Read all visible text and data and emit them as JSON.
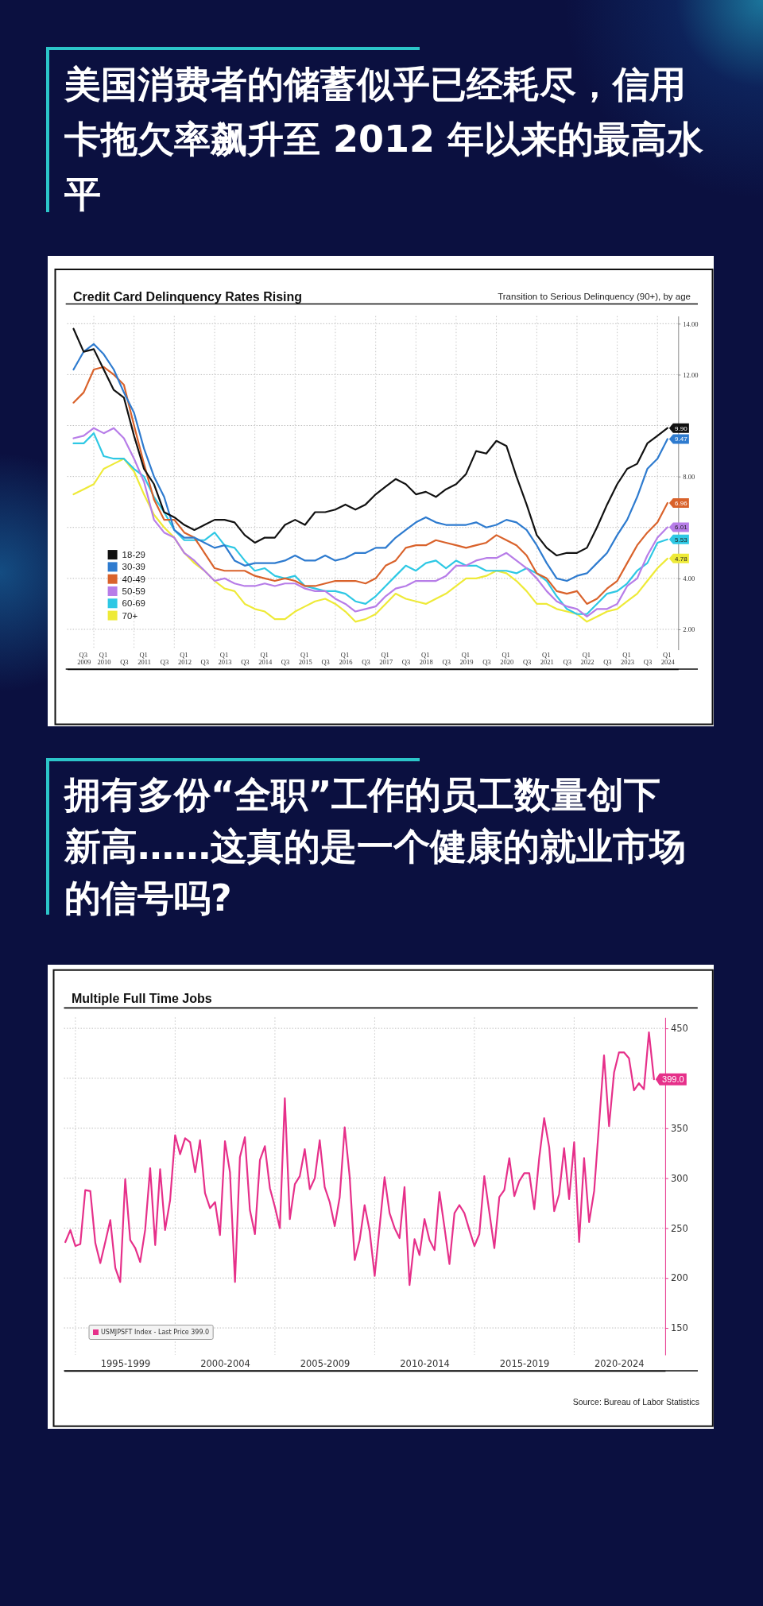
{
  "chart_data": [
    {
      "type": "line",
      "title": "美国消费者的储蓄似乎已经耗尽，信用卡拖欠率飙升至 2012 年以来的最高水平",
      "subtitle": "Credit Card Delinquency Rates Rising",
      "annotations": [
        "Transition to Serious Delinquency (90+), by age"
      ],
      "x": [
        "2009-07",
        "2009-10",
        "2010-01",
        "2010-04",
        "2010-07",
        "2010-10",
        "2011-01",
        "2011-04",
        "2011-07",
        "2011-10",
        "2012-01",
        "2012-04",
        "2012-07",
        "2012-10",
        "2013-01",
        "2013-04",
        "2013-07",
        "2013-10",
        "2014-01",
        "2014-04",
        "2014-07",
        "2014-10",
        "2015-01",
        "2015-04",
        "2015-07",
        "2015-10",
        "2016-01",
        "2016-04",
        "2016-07",
        "2016-10",
        "2017-01",
        "2017-04",
        "2017-07",
        "2017-10",
        "2018-01",
        "2018-04",
        "2018-07",
        "2018-10",
        "2019-01",
        "2019-04",
        "2019-07",
        "2019-10",
        "2020-01",
        "2020-04",
        "2020-07",
        "2020-10",
        "2021-01",
        "2021-04",
        "2021-07",
        "2021-10",
        "2022-01",
        "2022-04",
        "2022-07",
        "2022-10",
        "2023-01",
        "2023-04",
        "2023-07",
        "2023-10",
        "2024-01",
        "2024-04"
      ],
      "xlim": [
        "2009-05-05",
        "2024-07-07"
      ],
      "xticks": [
        {
          "value": "2009-10-01",
          "label": "Q3 2009"
        },
        {
          "value": "2010-04-01",
          "label": "Q1 2010"
        },
        {
          "value": "2010-10-01",
          "label": "Q3"
        },
        {
          "value": "2011-04-01",
          "label": "Q1 2011"
        },
        {
          "value": "2011-10-01",
          "label": "Q3"
        },
        {
          "value": "2012-04-01",
          "label": "Q1 2012"
        },
        {
          "value": "2012-10-01",
          "label": "Q3"
        },
        {
          "value": "2013-04-01",
          "label": "Q1 2013"
        },
        {
          "value": "2013-10-01",
          "label": "Q3"
        },
        {
          "value": "2014-04-01",
          "label": "Q1 2014"
        },
        {
          "value": "2014-10-01",
          "label": "Q3"
        },
        {
          "value": "2015-04-01",
          "label": "Q1 2015"
        },
        {
          "value": "2015-10-01",
          "label": "Q3"
        },
        {
          "value": "2016-04-01",
          "label": "Q1 2016"
        },
        {
          "value": "2016-10-01",
          "label": "Q3"
        },
        {
          "value": "2017-04-01",
          "label": "Q1 2017"
        },
        {
          "value": "2017-10-01",
          "label": "Q3"
        },
        {
          "value": "2018-04-01",
          "label": "Q1 2018"
        },
        {
          "value": "2018-10-01",
          "label": "Q3"
        },
        {
          "value": "2019-04-01",
          "label": "Q1 2019"
        },
        {
          "value": "2019-10-01",
          "label": "Q3"
        },
        {
          "value": "2020-04-01",
          "label": "Q1 2020"
        },
        {
          "value": "2020-10-01",
          "label": "Q3"
        },
        {
          "value": "2021-04-01",
          "label": "Q1 2021"
        },
        {
          "value": "2021-10-01",
          "label": "Q3"
        },
        {
          "value": "2022-04-01",
          "label": "Q1 2022"
        },
        {
          "value": "2022-10-01",
          "label": "Q3"
        },
        {
          "value": "2023-04-01",
          "label": "Q1 2023"
        },
        {
          "value": "2023-10-01",
          "label": "Q3"
        },
        {
          "value": "2024-04-01",
          "label": "Q1 2024"
        }
      ],
      "ylim": [
        1.2,
        14.3
      ],
      "yticks": [
        {
          "value": 2,
          "label": "2.00"
        },
        {
          "value": 4,
          "label": "4.00"
        },
        {
          "value": 6,
          "label": null
        },
        {
          "value": 8,
          "label": "8.00"
        },
        {
          "value": 10,
          "label": null
        },
        {
          "value": 12,
          "label": "12.00"
        },
        {
          "value": 14,
          "label": "14.00"
        }
      ],
      "grid": "y",
      "legend": "bottom left",
      "ref_lines": [
        {
          "axis": "x",
          "value": "2010-01-01",
          "color": "#c8c8c8",
          "line_style": "dotted"
        },
        {
          "axis": "x",
          "value": "2011-01-01",
          "color": "#c8c8c8",
          "line_style": "dotted"
        },
        {
          "axis": "x",
          "value": "2012-01-01",
          "color": "#c8c8c8",
          "line_style": "dotted"
        },
        {
          "axis": "x",
          "value": "2013-01-01",
          "color": "#c8c8c8",
          "line_style": "dotted"
        },
        {
          "axis": "x",
          "value": "2014-01-01",
          "color": "#c8c8c8",
          "line_style": "dotted"
        },
        {
          "axis": "x",
          "value": "2015-01-01",
          "color": "#c8c8c8",
          "line_style": "dotted"
        },
        {
          "axis": "x",
          "value": "2016-01-01",
          "color": "#c8c8c8",
          "line_style": "dotted"
        },
        {
          "axis": "x",
          "value": "2017-01-01",
          "color": "#c8c8c8",
          "line_style": "dotted"
        },
        {
          "axis": "x",
          "value": "2018-01-01",
          "color": "#c8c8c8",
          "line_style": "dotted"
        },
        {
          "axis": "x",
          "value": "2019-01-01",
          "color": "#c8c8c8",
          "line_style": "dotted"
        },
        {
          "axis": "x",
          "value": "2020-01-01",
          "color": "#c8c8c8",
          "line_style": "dotted"
        },
        {
          "axis": "x",
          "value": "2021-01-01",
          "color": "#c8c8c8",
          "line_style": "dotted"
        },
        {
          "axis": "x",
          "value": "2022-01-01",
          "color": "#c8c8c8",
          "line_style": "dotted"
        },
        {
          "axis": "x",
          "value": "2023-01-01",
          "color": "#c8c8c8",
          "line_style": "dotted"
        },
        {
          "axis": "x",
          "value": "2024-01-01",
          "color": "#c8c8c8",
          "line_style": "dotted"
        }
      ],
      "series": [
        {
          "name": "18-29",
          "color": "#111111",
          "values": [
            13.8,
            12.9,
            13.0,
            12.2,
            11.4,
            11.1,
            9.6,
            8.3,
            7.7,
            6.6,
            6.4,
            6.1,
            5.9,
            6.1,
            6.3,
            6.3,
            6.2,
            5.7,
            5.4,
            5.6,
            5.6,
            6.1,
            6.3,
            6.1,
            6.6,
            6.6,
            6.7,
            6.9,
            6.7,
            6.9,
            7.3,
            7.6,
            7.9,
            7.7,
            7.3,
            7.4,
            7.2,
            7.5,
            7.7,
            8.1,
            9.0,
            8.9,
            9.4,
            9.2,
            8.0,
            6.9,
            5.7,
            5.2,
            4.9,
            5.0,
            5.0,
            5.2,
            6.0,
            6.9,
            7.7,
            8.3,
            8.5,
            9.3,
            9.6,
            9.9
          ],
          "value_labels": [
            null,
            null,
            null,
            null,
            null,
            null,
            null,
            null,
            null,
            null,
            null,
            null,
            null,
            null,
            null,
            null,
            null,
            null,
            null,
            null,
            null,
            null,
            null,
            null,
            null,
            null,
            null,
            null,
            null,
            null,
            null,
            null,
            null,
            null,
            null,
            null,
            null,
            null,
            null,
            null,
            null,
            null,
            null,
            null,
            null,
            null,
            null,
            null,
            null,
            null,
            null,
            null,
            null,
            null,
            null,
            null,
            null,
            null,
            null,
            "9.90"
          ]
        },
        {
          "name": "30-39",
          "color": "#2e7bcf",
          "values": [
            12.2,
            12.9,
            13.2,
            12.8,
            12.2,
            11.3,
            10.5,
            9.1,
            8.0,
            7.2,
            5.9,
            5.6,
            5.6,
            5.4,
            5.2,
            5.3,
            4.7,
            4.5,
            4.6,
            4.6,
            4.6,
            4.7,
            4.9,
            4.7,
            4.7,
            4.9,
            4.7,
            4.8,
            5.0,
            5.0,
            5.2,
            5.2,
            5.6,
            5.9,
            6.2,
            6.4,
            6.2,
            6.1,
            6.1,
            6.1,
            6.2,
            6.0,
            6.1,
            6.3,
            6.2,
            5.9,
            5.3,
            4.6,
            4.0,
            3.9,
            4.1,
            4.2,
            4.6,
            5.0,
            5.7,
            6.3,
            7.2,
            8.3,
            8.7,
            9.47
          ],
          "value_labels": [
            null,
            null,
            null,
            null,
            null,
            null,
            null,
            null,
            null,
            null,
            null,
            null,
            null,
            null,
            null,
            null,
            null,
            null,
            null,
            null,
            null,
            null,
            null,
            null,
            null,
            null,
            null,
            null,
            null,
            null,
            null,
            null,
            null,
            null,
            null,
            null,
            null,
            null,
            null,
            null,
            null,
            null,
            null,
            null,
            null,
            null,
            null,
            null,
            null,
            null,
            null,
            null,
            null,
            null,
            null,
            null,
            null,
            null,
            null,
            "9.47"
          ]
        },
        {
          "name": "40-49",
          "color": "#d9622b",
          "values": [
            10.9,
            11.3,
            12.2,
            12.3,
            12.0,
            11.6,
            10.0,
            8.5,
            7.1,
            6.3,
            6.3,
            5.8,
            5.6,
            5.0,
            4.4,
            4.3,
            4.3,
            4.3,
            4.1,
            4.0,
            3.9,
            4.0,
            3.9,
            3.7,
            3.7,
            3.8,
            3.9,
            3.9,
            3.9,
            3.8,
            4.0,
            4.5,
            4.7,
            5.2,
            5.3,
            5.3,
            5.5,
            5.4,
            5.3,
            5.2,
            5.3,
            5.4,
            5.7,
            5.5,
            5.3,
            4.9,
            4.2,
            4.0,
            3.5,
            3.4,
            3.5,
            3.0,
            3.2,
            3.6,
            3.9,
            4.6,
            5.3,
            5.8,
            6.2,
            6.96
          ],
          "value_labels": [
            null,
            null,
            null,
            null,
            null,
            null,
            null,
            null,
            null,
            null,
            null,
            null,
            null,
            null,
            null,
            null,
            null,
            null,
            null,
            null,
            null,
            null,
            null,
            null,
            null,
            null,
            null,
            null,
            null,
            null,
            null,
            null,
            null,
            null,
            null,
            null,
            null,
            null,
            null,
            null,
            null,
            null,
            null,
            null,
            null,
            null,
            null,
            null,
            null,
            null,
            null,
            null,
            null,
            null,
            null,
            null,
            null,
            null,
            null,
            "6.96"
          ]
        },
        {
          "name": "50-59",
          "color": "#b77de8",
          "values": [
            9.5,
            9.6,
            9.9,
            9.7,
            9.9,
            9.5,
            8.7,
            7.8,
            6.3,
            5.8,
            5.6,
            5.0,
            4.7,
            4.3,
            3.9,
            4.0,
            3.8,
            3.7,
            3.7,
            3.8,
            3.7,
            3.8,
            3.8,
            3.6,
            3.5,
            3.5,
            3.2,
            3.0,
            2.7,
            2.8,
            2.9,
            3.3,
            3.6,
            3.7,
            3.9,
            3.9,
            3.9,
            4.1,
            4.5,
            4.5,
            4.7,
            4.8,
            4.8,
            5.0,
            4.7,
            4.4,
            4.0,
            3.5,
            3.1,
            2.9,
            2.8,
            2.5,
            2.8,
            2.8,
            3.0,
            3.7,
            4.0,
            4.9,
            5.6,
            6.01
          ],
          "value_labels": [
            null,
            null,
            null,
            null,
            null,
            null,
            null,
            null,
            null,
            null,
            null,
            null,
            null,
            null,
            null,
            null,
            null,
            null,
            null,
            null,
            null,
            null,
            null,
            null,
            null,
            null,
            null,
            null,
            null,
            null,
            null,
            null,
            null,
            null,
            null,
            null,
            null,
            null,
            null,
            null,
            null,
            null,
            null,
            null,
            null,
            null,
            null,
            null,
            null,
            null,
            null,
            null,
            null,
            null,
            null,
            null,
            null,
            null,
            null,
            "6.01"
          ]
        },
        {
          "name": "60-69",
          "color": "#2ec8e4",
          "values": [
            9.3,
            9.3,
            9.7,
            8.8,
            8.7,
            8.7,
            8.3,
            8.0,
            7.2,
            6.6,
            5.9,
            5.5,
            5.5,
            5.5,
            5.8,
            5.3,
            5.2,
            4.7,
            4.3,
            4.4,
            4.1,
            4.0,
            4.1,
            3.7,
            3.6,
            3.5,
            3.5,
            3.4,
            3.1,
            3.0,
            3.3,
            3.7,
            4.1,
            4.5,
            4.3,
            4.6,
            4.7,
            4.4,
            4.7,
            4.5,
            4.5,
            4.3,
            4.3,
            4.3,
            4.2,
            4.4,
            4.2,
            3.9,
            3.3,
            2.8,
            2.6,
            2.6,
            3.0,
            3.4,
            3.5,
            3.8,
            4.3,
            4.6,
            5.4,
            5.53
          ],
          "value_labels": [
            null,
            null,
            null,
            null,
            null,
            null,
            null,
            null,
            null,
            null,
            null,
            null,
            null,
            null,
            null,
            null,
            null,
            null,
            null,
            null,
            null,
            null,
            null,
            null,
            null,
            null,
            null,
            null,
            null,
            null,
            null,
            null,
            null,
            null,
            null,
            null,
            null,
            null,
            null,
            null,
            null,
            null,
            null,
            null,
            null,
            null,
            null,
            null,
            null,
            null,
            null,
            null,
            null,
            null,
            null,
            null,
            null,
            null,
            null,
            "5.53"
          ]
        },
        {
          "name": "70+",
          "color": "#eeea38",
          "values": [
            7.3,
            7.5,
            7.7,
            8.3,
            8.5,
            8.7,
            8.2,
            7.3,
            6.5,
            6.0,
            5.6,
            5.0,
            4.6,
            4.3,
            3.9,
            3.6,
            3.5,
            3.0,
            2.8,
            2.7,
            2.4,
            2.4,
            2.7,
            2.9,
            3.1,
            3.2,
            3.0,
            2.7,
            2.3,
            2.4,
            2.6,
            3.0,
            3.4,
            3.2,
            3.1,
            3.0,
            3.2,
            3.4,
            3.7,
            4.0,
            4.0,
            4.1,
            4.3,
            4.2,
            3.9,
            3.5,
            3.0,
            3.0,
            2.8,
            2.7,
            2.6,
            2.3,
            2.5,
            2.7,
            2.8,
            3.1,
            3.4,
            3.9,
            4.4,
            4.78
          ],
          "value_labels": [
            null,
            null,
            null,
            null,
            null,
            null,
            null,
            null,
            null,
            null,
            null,
            null,
            null,
            null,
            null,
            null,
            null,
            null,
            null,
            null,
            null,
            null,
            null,
            null,
            null,
            null,
            null,
            null,
            null,
            null,
            null,
            null,
            null,
            null,
            null,
            null,
            null,
            null,
            null,
            null,
            null,
            null,
            null,
            null,
            null,
            null,
            null,
            null,
            null,
            null,
            null,
            null,
            null,
            null,
            null,
            null,
            null,
            null,
            null,
            "4.78"
          ]
        }
      ]
    },
    {
      "type": "line",
      "title": "拥有多份“全职”工作的员工数量创下新高……这真的是一个健康的就业市场的信号吗?",
      "subtitle": "Multiple Full Time Jobs",
      "annotations": [
        "Source: Bureau of Labor Statistics"
      ],
      "x": [
        "1994-07",
        "1994-10",
        "1995-01",
        "1995-04",
        "1995-07",
        "1995-10",
        "1996-01",
        "1996-04",
        "1996-07",
        "1996-10",
        "1997-01",
        "1997-04",
        "1997-07",
        "1997-10",
        "1998-01",
        "1998-04",
        "1998-07",
        "1998-10",
        "1999-01",
        "1999-04",
        "1999-07",
        "1999-10",
        "2000-01",
        "2000-04",
        "2000-07",
        "2000-10",
        "2001-01",
        "2001-04",
        "2001-07",
        "2001-10",
        "2002-01",
        "2002-04",
        "2002-07",
        "2002-10",
        "2003-01",
        "2003-04",
        "2003-07",
        "2003-10",
        "2004-01",
        "2004-04",
        "2004-07",
        "2004-10",
        "2005-01",
        "2005-04",
        "2005-07",
        "2005-10",
        "2006-01",
        "2006-04",
        "2006-07",
        "2006-10",
        "2007-01",
        "2007-04",
        "2007-07",
        "2007-10",
        "2008-01",
        "2008-04",
        "2008-07",
        "2008-10",
        "2009-01",
        "2009-04",
        "2009-07",
        "2009-10",
        "2010-01",
        "2010-04",
        "2010-07",
        "2010-10",
        "2011-01",
        "2011-04",
        "2011-07",
        "2011-10",
        "2012-01",
        "2012-04",
        "2012-07",
        "2012-10",
        "2013-01",
        "2013-04",
        "2013-07",
        "2013-10",
        "2014-01",
        "2014-04",
        "2014-07",
        "2014-10",
        "2015-01",
        "2015-04",
        "2015-07",
        "2015-10",
        "2016-01",
        "2016-04",
        "2016-07",
        "2016-10",
        "2017-01",
        "2017-04",
        "2017-07",
        "2017-10",
        "2018-01",
        "2018-04",
        "2018-07",
        "2018-10",
        "2019-01",
        "2019-04",
        "2019-07",
        "2019-10",
        "2020-01",
        "2020-04",
        "2020-07",
        "2020-10",
        "2021-01",
        "2021-04",
        "2021-07",
        "2021-10",
        "2022-01",
        "2022-04",
        "2022-07",
        "2022-10",
        "2023-01",
        "2023-04",
        "2023-07",
        "2023-10",
        "2024-01"
      ],
      "xlim": [
        "1994-06-06",
        "2024-07-24"
      ],
      "xticks": [
        {
          "value": "1997-07-01",
          "label": "1995-1999"
        },
        {
          "value": "2002-07-01",
          "label": "2000-2004"
        },
        {
          "value": "2007-07-01",
          "label": "2005-2009"
        },
        {
          "value": "2012-07-01",
          "label": "2010-2014"
        },
        {
          "value": "2017-07-01",
          "label": "2015-2019"
        },
        {
          "value": "2022-04-01",
          "label": "2020-2024"
        }
      ],
      "ylim": [
        123,
        461
      ],
      "yticks": [
        150,
        200,
        250,
        300,
        350,
        {
          "value": 400,
          "label": null
        },
        450
      ],
      "grid": "y",
      "legend": "bottom left",
      "ref_lines": [
        {
          "axis": "x",
          "value": "1995-01-01",
          "color": "#c8c8c8",
          "line_style": "dotted"
        },
        {
          "axis": "x",
          "value": "2000-01-01",
          "color": "#c8c8c8",
          "line_style": "dotted"
        },
        {
          "axis": "x",
          "value": "2005-01-01",
          "color": "#c8c8c8",
          "line_style": "dotted"
        },
        {
          "axis": "x",
          "value": "2010-01-01",
          "color": "#c8c8c8",
          "line_style": "dotted"
        },
        {
          "axis": "x",
          "value": "2015-01-01",
          "color": "#c8c8c8",
          "line_style": "dotted"
        },
        {
          "axis": "x",
          "value": "2020-01-01",
          "color": "#c8c8c8",
          "line_style": "dotted"
        }
      ],
      "series": [
        {
          "name": "USMJPSFT Index - Last Price 399.0",
          "color": "#e6308a",
          "values": [
            236,
            248,
            232,
            234,
            288,
            287,
            235,
            215,
            236,
            258,
            210,
            196,
            299,
            238,
            230,
            216,
            248,
            310,
            233,
            309,
            248,
            278,
            343,
            324,
            340,
            336,
            306,
            338,
            285,
            270,
            276,
            243,
            337,
            306,
            196,
            321,
            341,
            268,
            244,
            318,
            332,
            290,
            271,
            250,
            380,
            259,
            294,
            302,
            329,
            289,
            300,
            338,
            291,
            276,
            252,
            281,
            351,
            301,
            218,
            238,
            273,
            247,
            202,
            251,
            301,
            265,
            250,
            240,
            291,
            193,
            239,
            223,
            259,
            238,
            228,
            286,
            251,
            214,
            265,
            273,
            265,
            248,
            232,
            244,
            302,
            266,
            230,
            281,
            288,
            320,
            282,
            297,
            305,
            305,
            269,
            320,
            360,
            331,
            267,
            284,
            330,
            279,
            336,
            236,
            320,
            256,
            287,
            354,
            423,
            352,
            406,
            426,
            426,
            420,
            388,
            395,
            389,
            446,
            399
          ],
          "value_labels": [
            null,
            null,
            null,
            null,
            null,
            null,
            null,
            null,
            null,
            null,
            null,
            null,
            null,
            null,
            null,
            null,
            null,
            null,
            null,
            null,
            null,
            null,
            null,
            null,
            null,
            null,
            null,
            null,
            null,
            null,
            null,
            null,
            null,
            null,
            null,
            null,
            null,
            null,
            null,
            null,
            null,
            null,
            null,
            null,
            null,
            null,
            null,
            null,
            null,
            null,
            null,
            null,
            null,
            null,
            null,
            null,
            null,
            null,
            null,
            null,
            null,
            null,
            null,
            null,
            null,
            null,
            null,
            null,
            null,
            null,
            null,
            null,
            null,
            null,
            null,
            null,
            null,
            null,
            null,
            null,
            null,
            null,
            null,
            null,
            null,
            null,
            null,
            null,
            null,
            null,
            null,
            null,
            null,
            null,
            null,
            null,
            null,
            null,
            null,
            null,
            null,
            null,
            null,
            null,
            null,
            null,
            null,
            null,
            null,
            null,
            null,
            null,
            null,
            null,
            null,
            null,
            null,
            null,
            "399.0"
          ]
        }
      ]
    }
  ]
}
